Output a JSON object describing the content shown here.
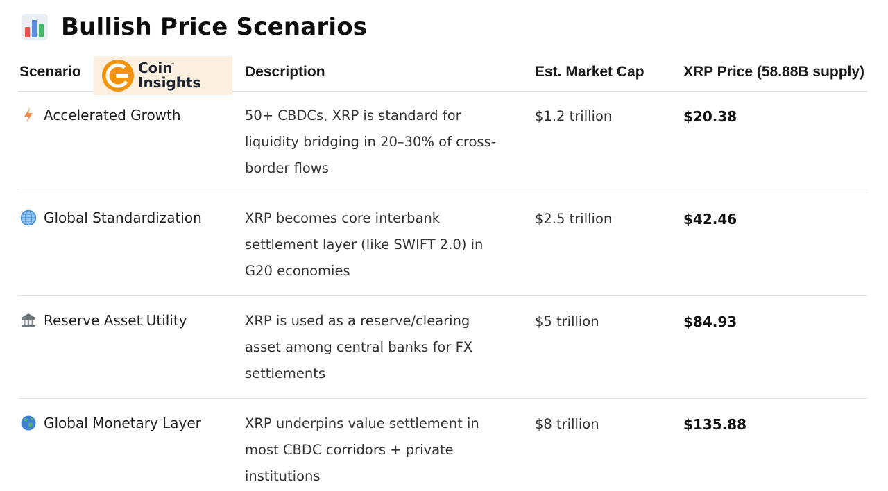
{
  "page": {
    "title": "Bullish Price Scenarios",
    "title_icon": "bar-chart-icon"
  },
  "watermark": {
    "line1": "Coin",
    "line2": "Insights",
    "tm": "™",
    "colors": {
      "orange": "#f2930f",
      "bg": "#fdf0e1"
    }
  },
  "table": {
    "headers": {
      "scenario": "Scenario",
      "description": "Description",
      "market_cap": "Est. Market Cap",
      "price": "XRP Price (58.88B supply)"
    },
    "rows": [
      {
        "icon": "lightning-icon",
        "scenario": "Accelerated Growth",
        "description": "50+ CBDCs, XRP is standard for liquidity bridging in 20–30% of cross-border flows",
        "market_cap": "$1.2 trillion",
        "price": "$20.38"
      },
      {
        "icon": "globe-meridians-icon",
        "scenario": "Global Standardization",
        "description": "XRP becomes core interbank settlement layer (like SWIFT 2.0) in G20 economies",
        "market_cap": "$2.5 trillion",
        "price": "$42.46"
      },
      {
        "icon": "bank-icon",
        "scenario": "Reserve Asset Utility",
        "description": "XRP is used as a reserve/clearing asset among central banks for FX settlements",
        "market_cap": "$5 trillion",
        "price": "$84.93"
      },
      {
        "icon": "earth-globe-icon",
        "scenario": "Global Monetary Layer",
        "description": "XRP underpins value settlement in most CBDC corridors + private institutions",
        "market_cap": "$8 trillion",
        "price": "$135.88"
      }
    ]
  }
}
